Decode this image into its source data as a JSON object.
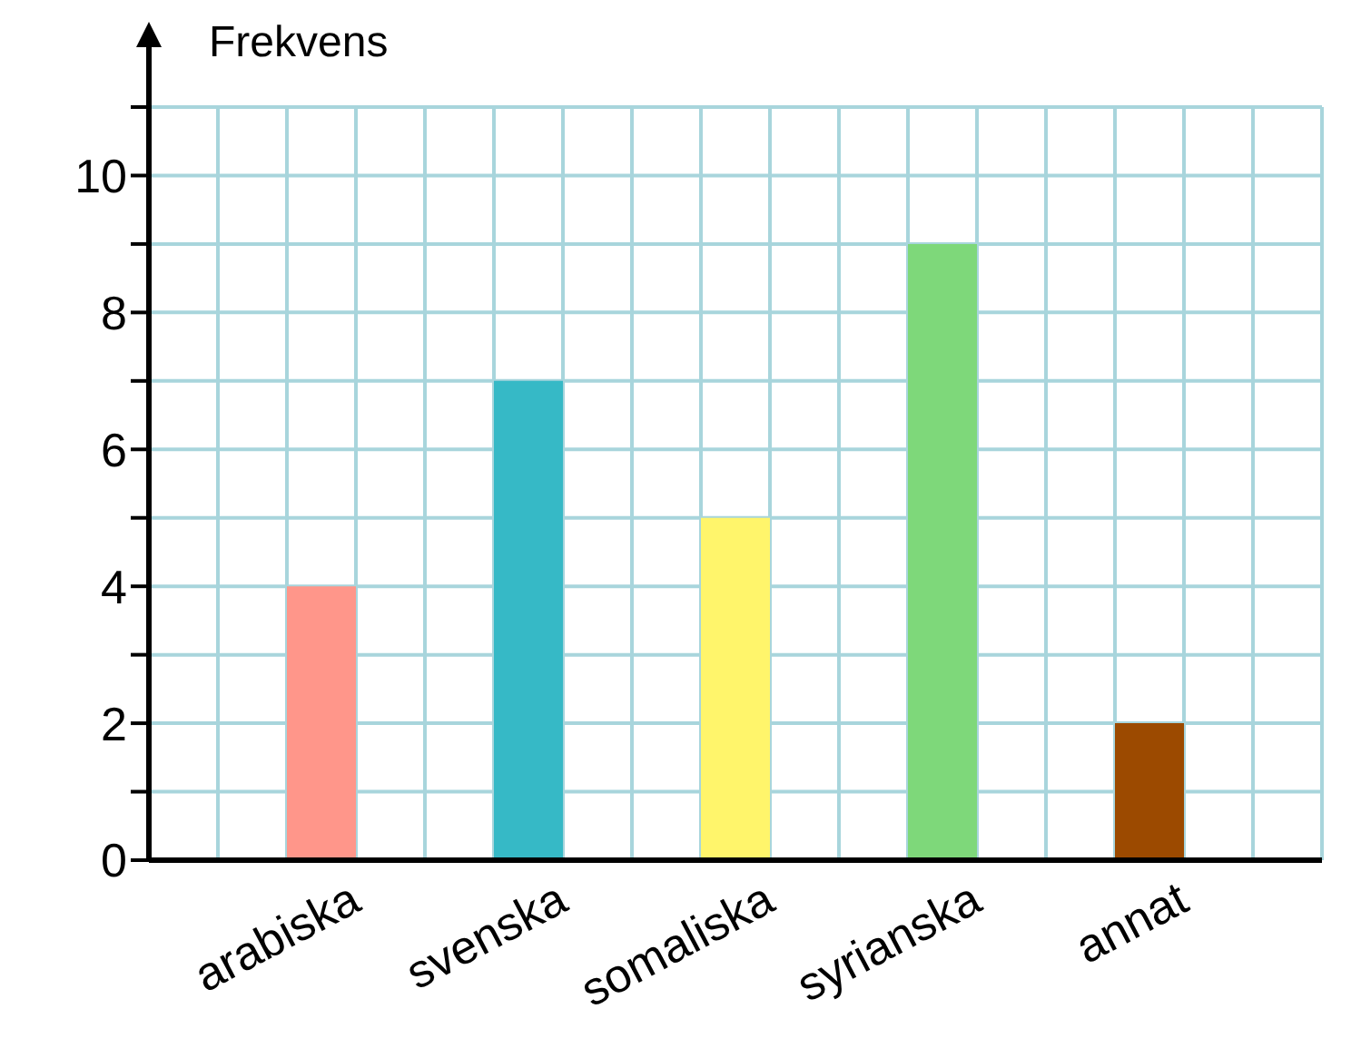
{
  "chart_data": {
    "type": "bar",
    "ylabel": "Frekvens",
    "categories": [
      "arabiska",
      "svenska",
      "somaliska",
      "syrianska",
      "annat"
    ],
    "values": [
      4,
      7,
      5,
      9,
      2
    ],
    "colors": [
      "#ff968a",
      "#36b9c6",
      "#fff56b",
      "#7ed87a",
      "#9c4a00"
    ],
    "ylim": [
      0,
      11
    ],
    "yticks": [
      0,
      {
        "value": 1,
        "label": null
      },
      2,
      {
        "value": 3,
        "label": null
      },
      4,
      {
        "value": 5,
        "label": null
      },
      6,
      {
        "value": 7,
        "label": null
      },
      8,
      {
        "value": 9,
        "label": null
      },
      10,
      {
        "value": 11,
        "label": null
      }
    ],
    "grid": true
  }
}
